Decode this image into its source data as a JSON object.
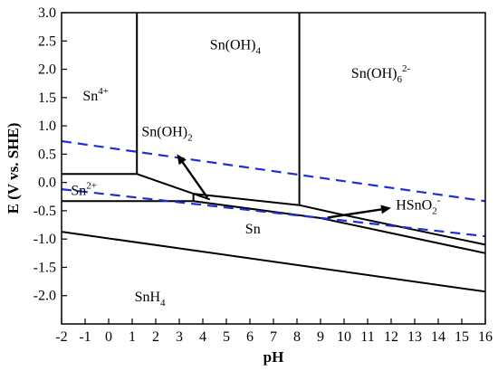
{
  "chart_data": {
    "type": "line",
    "title": "",
    "xlabel": "pH",
    "ylabel": "E (V vs. SHE)",
    "xlim": [
      -2,
      16
    ],
    "ylim": [
      -2.5,
      3.0
    ],
    "xticks": [
      -2,
      -1,
      0,
      1,
      2,
      3,
      4,
      5,
      6,
      7,
      8,
      9,
      10,
      11,
      12,
      13,
      14,
      15,
      16
    ],
    "yticks": [
      3.0,
      2.5,
      2.0,
      1.5,
      1.0,
      0.5,
      0.0,
      -0.5,
      -1.0,
      -1.5,
      -2.0
    ],
    "grid": false,
    "series": [
      {
        "style": "solid",
        "color": "#000000",
        "points": [
          [
            1.2,
            3.0
          ],
          [
            1.2,
            0.15
          ]
        ]
      },
      {
        "style": "solid",
        "color": "#000000",
        "points": [
          [
            8.1,
            3.0
          ],
          [
            8.1,
            -0.4
          ]
        ]
      },
      {
        "style": "solid",
        "color": "#000000",
        "points": [
          [
            -2,
            0.15
          ],
          [
            1.2,
            0.15
          ],
          [
            4.3,
            -0.3
          ]
        ]
      },
      {
        "style": "solid",
        "color": "#000000",
        "points": [
          [
            -2,
            -0.33
          ],
          [
            3.6,
            -0.33
          ]
        ]
      },
      {
        "style": "solid",
        "color": "#000000",
        "points": [
          [
            3.6,
            -0.33
          ],
          [
            3.6,
            -0.2
          ]
        ]
      },
      {
        "style": "solid",
        "color": "#000000",
        "points": [
          [
            3.6,
            -0.2
          ],
          [
            8.1,
            -0.4
          ],
          [
            9.7,
            -0.55
          ],
          [
            16,
            -1.1
          ]
        ]
      },
      {
        "style": "solid",
        "color": "#000000",
        "points": [
          [
            3.6,
            -0.33
          ],
          [
            9.0,
            -0.63
          ],
          [
            16,
            -1.25
          ]
        ]
      },
      {
        "style": "solid",
        "color": "#000000",
        "points": [
          [
            -2,
            -0.87
          ],
          [
            16,
            -1.93
          ]
        ]
      },
      {
        "style": "dashed",
        "color": "#1f2fd6",
        "points": [
          [
            -2,
            0.73
          ],
          [
            16,
            -0.33
          ]
        ]
      },
      {
        "style": "dashed",
        "color": "#1f2fd6",
        "points": [
          [
            -2,
            -0.12
          ],
          [
            16,
            -0.95
          ]
        ]
      }
    ],
    "region_labels": [
      {
        "text": "Sn(OH)",
        "sub": "4",
        "sup": "",
        "x": 4.3,
        "y": 2.35
      },
      {
        "text": "Sn(OH)",
        "sub": "6",
        "sup": "2-",
        "x": 10.3,
        "y": 1.85
      },
      {
        "text": "Sn",
        "sub": "",
        "sup": "4+",
        "x": -1.1,
        "y": 1.45
      },
      {
        "text": "Sn(OH)",
        "sub": "2",
        "sup": "",
        "x": 1.4,
        "y": 0.82
      },
      {
        "text": "Sn",
        "sub": "",
        "sup": "2+",
        "x": -1.6,
        "y": -0.22
      },
      {
        "text": "HSnO",
        "sub": "2",
        "sup": "-",
        "x": 12.2,
        "y": -0.48
      },
      {
        "text": "Sn",
        "sub": "",
        "sup": "",
        "x": 5.8,
        "y": -0.9
      },
      {
        "text": "SnH",
        "sub": "4",
        "sup": "",
        "x": 1.1,
        "y": -2.1
      }
    ],
    "arrows": [
      {
        "from": [
          4.2,
          -0.27
        ],
        "to": [
          2.9,
          0.5
        ]
      },
      {
        "from": [
          9.3,
          -0.62
        ],
        "to": [
          12.0,
          -0.45
        ]
      }
    ]
  }
}
